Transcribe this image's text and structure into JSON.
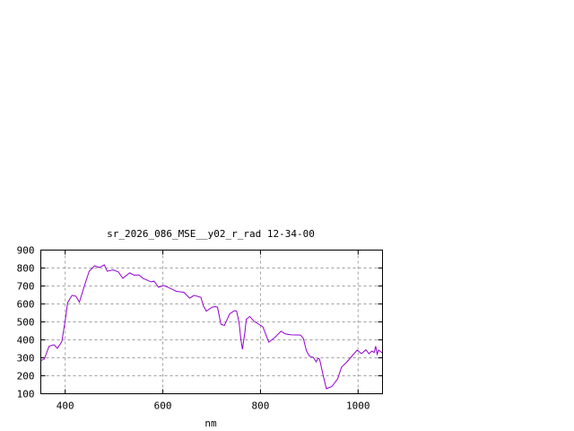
{
  "chart_data": {
    "type": "line",
    "title": "sr_2026_086_MSE__y02_r_rad 12-34-00",
    "xlabel": "nm",
    "ylabel": "",
    "xlim": [
      350,
      1050
    ],
    "ylim": [
      100,
      900
    ],
    "xticks": [
      400,
      600,
      800,
      1000
    ],
    "yticks": [
      100,
      200,
      300,
      400,
      500,
      600,
      700,
      800,
      900
    ],
    "grid": true,
    "legend": "none",
    "line_color": "#9400d3",
    "series": [
      {
        "x": [
          350,
          357,
          367,
          377,
          384,
          393,
          400,
          405,
          414,
          422,
          429,
          438,
          449,
          460,
          470,
          480,
          486,
          498,
          509,
          518,
          532,
          541,
          551,
          559,
          576,
          582,
          591,
          602,
          615,
          628,
          643,
          655,
          664,
          678,
          683,
          689,
          701,
          707,
          712,
          719,
          726,
          737,
          747,
          751,
          756,
          760,
          763,
          768,
          771,
          778,
          787,
          805,
          817,
          830,
          842,
          851,
          863,
          882,
          888,
          894,
          900,
          908,
          914,
          918,
          921,
          928,
          935,
          946,
          958,
          966,
          977,
          989,
          998,
          1007,
          1016,
          1022,
          1028,
          1033,
          1036,
          1039,
          1042,
          1049
        ],
        "y": [
          285,
          293,
          365,
          373,
          353,
          390,
          507,
          607,
          648,
          643,
          610,
          690,
          782,
          812,
          803,
          818,
          782,
          790,
          778,
          743,
          773,
          760,
          762,
          743,
          723,
          727,
          693,
          703,
          687,
          670,
          665,
          632,
          648,
          637,
          590,
          560,
          582,
          585,
          582,
          487,
          480,
          545,
          563,
          560,
          498,
          398,
          348,
          440,
          515,
          530,
          503,
          473,
          387,
          415,
          448,
          433,
          428,
          427,
          407,
          340,
          310,
          303,
          278,
          298,
          293,
          207,
          128,
          140,
          182,
          248,
          277,
          315,
          343,
          323,
          345,
          323,
          337,
          330,
          365,
          320,
          343,
          328
        ]
      }
    ]
  }
}
